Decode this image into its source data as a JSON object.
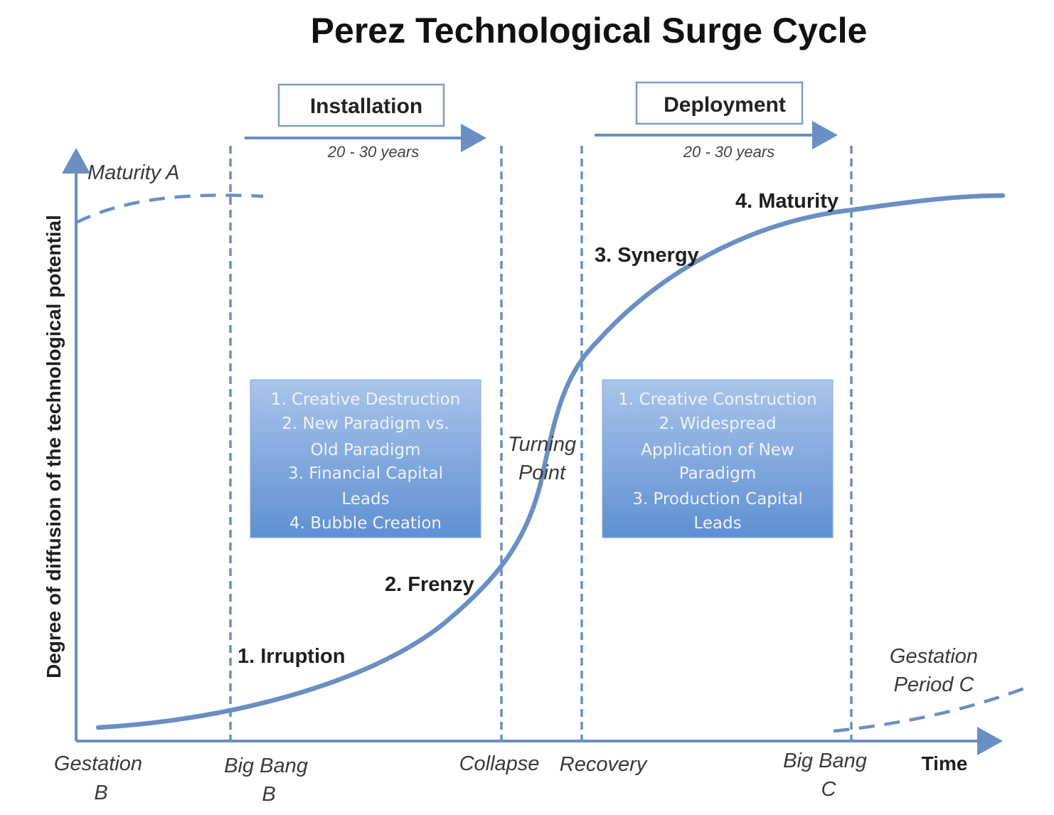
{
  "title": "Perez Technological Surge Cycle",
  "phases": {
    "installation": {
      "label": "Installation",
      "duration": "20 - 30 years"
    },
    "deployment": {
      "label": "Deployment",
      "duration": "20 - 30 years"
    }
  },
  "y_axis_label": "Degree of diffusion of the technological potential",
  "x_axis_label": "Time",
  "curve_labels": {
    "maturity_a": "Maturity A",
    "gestation_period_c_line1": "Gestation",
    "gestation_period_c_line2": "Period C",
    "turning_point_line1": "Turning",
    "turning_point_line2": "Point"
  },
  "stages": {
    "irruption": "1. Irruption",
    "frenzy": "2. Frenzy",
    "synergy": "3. Synergy",
    "maturity": "4. Maturity"
  },
  "installation_box": {
    "lines": [
      "1. Creative Destruction",
      "2. New Paradigm vs.",
      "Old Paradigm",
      "3. Financial Capital",
      "Leads",
      "4. Bubble Creation"
    ]
  },
  "deployment_box": {
    "lines": [
      "1. Creative Construction",
      "2. Widespread",
      "Application of New",
      "Paradigm",
      "3. Production Capital",
      "Leads"
    ]
  },
  "x_markers": {
    "gestation_b_line1": "Gestation",
    "gestation_b_line2": "B",
    "big_bang_b_line1": "Big Bang",
    "big_bang_b_line2": "B",
    "collapse": "Collapse",
    "recovery": "Recovery",
    "big_bang_c_line1": "Big Bang",
    "big_bang_c_line2": "C"
  },
  "colors": {
    "curve": "#6a8fc2",
    "box_top": "#a9c5ea",
    "box_bottom": "#5f8fd3"
  }
}
